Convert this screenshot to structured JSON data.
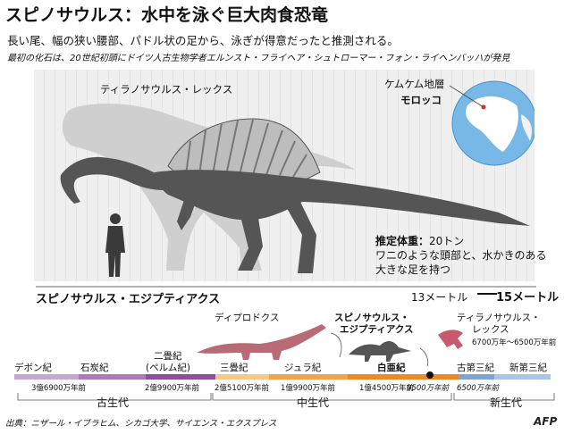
{
  "title": "スピノサウルス：水中を泳ぐ巨大肉食恐竜",
  "subtitle": "長い尾、幅の狭い腰部、パドル状の足から、泳ぎが得意だったと推測される。",
  "discovery_note": "最初の化石は、20世紀初頭にドイツ人古生物学者エルンスト・フライヘア・シュトローマー・フォン・ライヘンバッハが発見",
  "trex_label": "ティラノサウルス・レックス",
  "location": {
    "line1": "ケムケム地層",
    "line2": "モロッコ"
  },
  "weight": {
    "label": "推定体重：",
    "value": "20トン",
    "line2": "ワニのような頭部と、水かきのある",
    "line3": "大きな足を持つ"
  },
  "spino_name": "スピノサウルス・エジプティアクス",
  "lengths": {
    "short": "13メートル",
    "long": "15メートル"
  },
  "timeline": {
    "species": {
      "diplodocus": "ディプロドクス",
      "spino_line1": "スピノサウルス・",
      "spino_line2": "エジプティアクス",
      "trex_line1": "ティラノサウルス・",
      "trex_line2": "レックス",
      "trex_range": "6700万年～6500万年前"
    },
    "periods": [
      {
        "name": "デボン紀",
        "color": "#c9a6cf"
      },
      {
        "name": "石炭紀",
        "color": "#ad7bb8"
      },
      {
        "name": "二畳紀",
        "name2": "(ペルム紀)",
        "color": "#8e4f9d"
      },
      {
        "name": "三畳紀",
        "color": "#f6c88a"
      },
      {
        "name": "ジュラ紀",
        "color": "#f0a24c"
      },
      {
        "name": "白亜紀",
        "color": "#ec8a28"
      },
      {
        "name": "古第三紀",
        "color": "#7fa4d1"
      },
      {
        "name": "新第三紀",
        "color": "#a9c6e6"
      }
    ],
    "dates": [
      "3億6900万年前",
      "2億9900万年前",
      "2億5100万年前",
      "1億9900万年前",
      "1億4500万年前",
      "9500万年前",
      "6500万年前"
    ],
    "eras": [
      "古生代",
      "中生代",
      "新生代"
    ]
  },
  "source": "出典：ニザール・イブラヒム、シカゴ大学、サイエンス・エクスプレス",
  "credit": "AFP"
}
